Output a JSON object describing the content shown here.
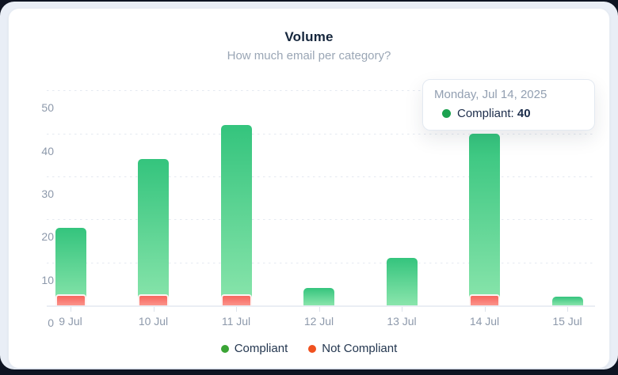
{
  "card": {
    "title": "Volume",
    "subtitle": "How much email per category?"
  },
  "tooltip": {
    "date": "Monday, Jul 14, 2025",
    "series_label": "Compliant:",
    "value": "40",
    "dot_color": "#1ca250"
  },
  "legend": [
    {
      "label": "Compliant",
      "color": "#3aa435"
    },
    {
      "label": "Not Compliant",
      "color": "#f0511f"
    }
  ],
  "colors": {
    "bar_green_top": "#34c47d",
    "bar_green_bottom": "#8ae5ac",
    "bar_red_top": "#f7655d",
    "bar_red_bottom": "#fb948b"
  },
  "chart_data": {
    "type": "bar",
    "title": "Volume",
    "subtitle": "How much email per category?",
    "categories": [
      "9 Jul",
      "10 Jul",
      "11 Jul",
      "12 Jul",
      "13 Jul",
      "14 Jul",
      "15 Jul"
    ],
    "series": [
      {
        "name": "Compliant",
        "values": [
          18,
          34,
          42,
          4,
          11,
          40,
          2
        ]
      },
      {
        "name": "Not Compliant",
        "values": [
          2.5,
          2.5,
          2.5,
          0,
          0,
          2.5,
          0
        ]
      }
    ],
    "xlabel": "",
    "ylabel": "",
    "ylim": [
      0,
      52
    ],
    "yticks": [
      0,
      10,
      20,
      30,
      40,
      50
    ],
    "grid": "dashed-horizontal",
    "legend_position": "bottom",
    "tooltip_shown_for": {
      "category": "14 Jul",
      "series": "Compliant",
      "value": 40
    }
  }
}
